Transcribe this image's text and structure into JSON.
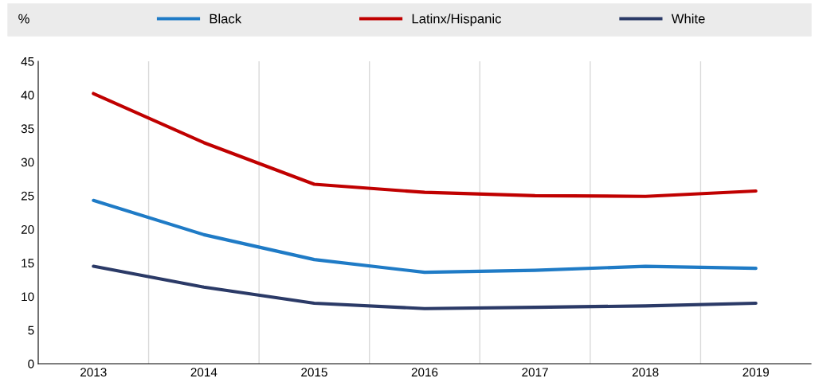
{
  "chart_data": {
    "type": "line",
    "ylabel": "%",
    "categories": [
      "2013",
      "2014",
      "2015",
      "2016",
      "2017",
      "2018",
      "2019"
    ],
    "series": [
      {
        "name": "Black",
        "color": "#1f7bc6",
        "values": [
          24.3,
          19.2,
          15.5,
          13.6,
          13.9,
          14.5,
          14.2
        ]
      },
      {
        "name": "Latinx/Hispanic",
        "color": "#c00000",
        "values": [
          40.2,
          32.9,
          26.7,
          25.5,
          25.0,
          24.9,
          25.7
        ]
      },
      {
        "name": "White",
        "color": "#2b3a67",
        "values": [
          14.5,
          11.4,
          9.0,
          8.2,
          8.4,
          8.6,
          9.0
        ]
      }
    ],
    "ylim": [
      0,
      45
    ],
    "yticks": [
      0,
      5,
      10,
      15,
      20,
      25,
      30,
      35,
      40,
      45
    ],
    "grid": "x",
    "legend": "top",
    "marker": "none",
    "line_style": "solid"
  }
}
